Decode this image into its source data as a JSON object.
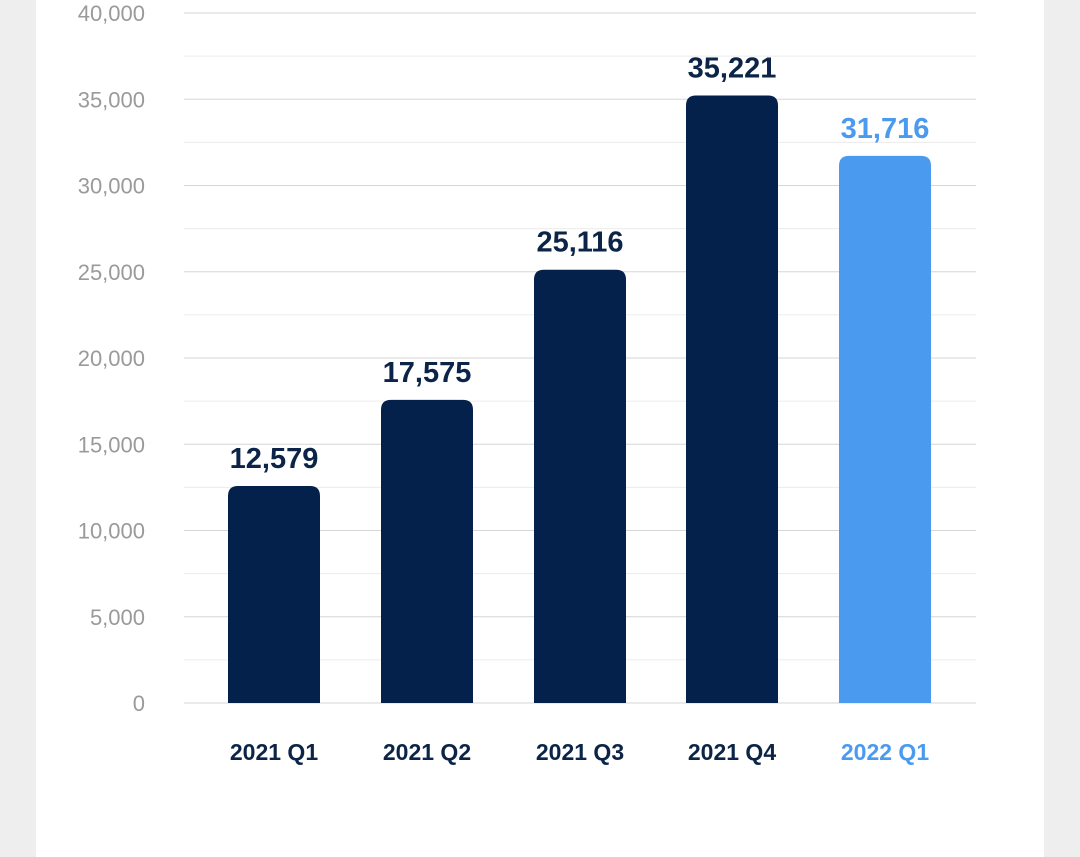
{
  "chart_data": {
    "type": "bar",
    "categories": [
      "2021 Q1",
      "2021 Q2",
      "2021 Q3",
      "2021 Q4",
      "2022 Q1"
    ],
    "values": [
      12579,
      17575,
      25116,
      35221,
      31716
    ],
    "value_labels": [
      "12,579",
      "17,575",
      "25,116",
      "35,221",
      "31,716"
    ],
    "highlight_index": 4,
    "ylim": [
      0,
      40000
    ],
    "yticks": [
      0,
      5000,
      10000,
      15000,
      20000,
      25000,
      30000,
      35000,
      40000
    ],
    "ytick_labels": [
      "0",
      "5,000",
      "10,000",
      "15,000",
      "20,000",
      "25,000",
      "30,000",
      "35,000",
      "40,000"
    ],
    "grid": true,
    "title": "",
    "xlabel": "",
    "ylabel": "",
    "colors": {
      "bar": "#03214a",
      "highlight": "#4a9af0",
      "label": "#0b2447",
      "highlight_label": "#4a9af0",
      "tick": "#9a9a9a"
    }
  }
}
